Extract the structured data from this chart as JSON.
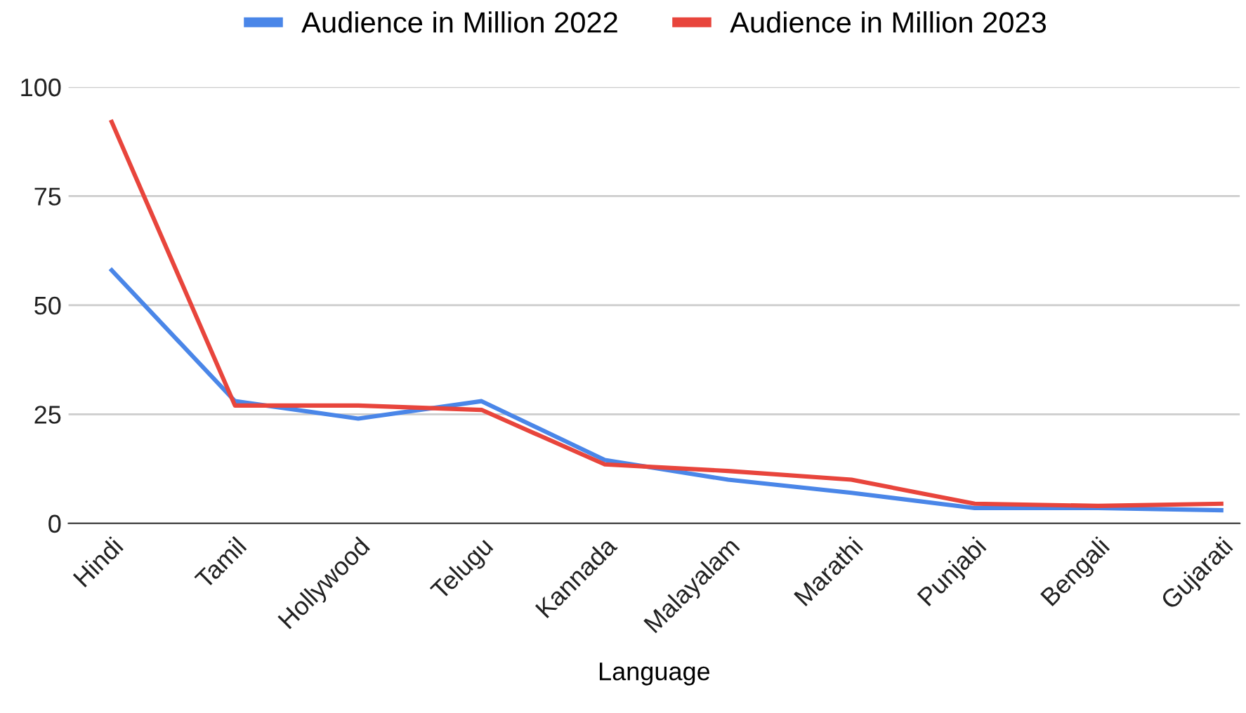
{
  "chart_data": {
    "type": "line",
    "xlabel": "Language",
    "categories": [
      "Hindi",
      "Tamil",
      "Hollywood",
      "Telugu",
      "Kannada",
      "Malayalam",
      "Marathi",
      "Punjabi",
      "Bengali",
      "Gujarati"
    ],
    "series": [
      {
        "name": "Audience in Million 2022",
        "color": "#4a86e8",
        "values": [
          58,
          28,
          24,
          28,
          14.5,
          10,
          7,
          3.5,
          3.5,
          3
        ]
      },
      {
        "name": "Audience in Million 2023",
        "color": "#e8453c",
        "values": [
          92,
          27,
          27,
          26,
          13.5,
          12,
          10,
          4.5,
          4,
          4.5
        ]
      }
    ],
    "ylim": [
      0,
      100
    ],
    "yticks": [
      0,
      25,
      50,
      75,
      100
    ],
    "grid": "y",
    "legend": "top",
    "marker": "none",
    "line_style": "solid"
  }
}
